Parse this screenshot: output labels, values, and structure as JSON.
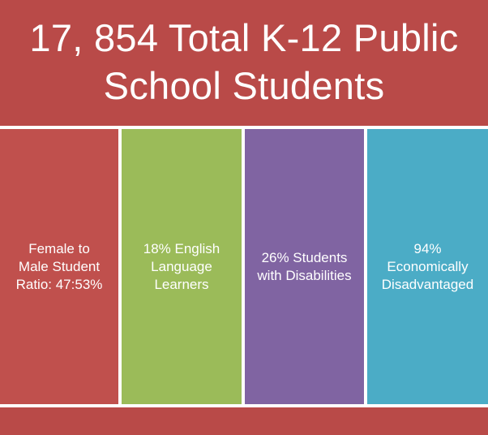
{
  "header": {
    "title": "17, 854 Total K-12 Public\nSchool Students"
  },
  "cards": [
    {
      "label": "Female to\nMale Student\nRatio: 47:53%"
    },
    {
      "label": "18% English\nLanguage\nLearners"
    },
    {
      "label": "26%  Students\nwith Disabilities"
    },
    {
      "label": "94%\nEconomically\nDisadvantaged"
    }
  ],
  "colors": {
    "header": "#b94a48",
    "card_red": "#c0504d",
    "card_green": "#9bbb59",
    "card_purple": "#8064a2",
    "card_teal": "#4bacc6",
    "footer": "#b94a48"
  }
}
